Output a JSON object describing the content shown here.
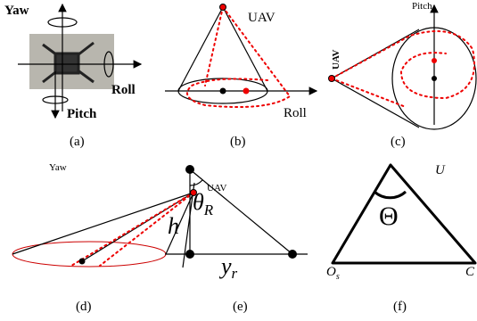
{
  "panels": [
    {
      "caption": "(a)",
      "labels": [
        "Yaw",
        "Roll",
        "Pitch"
      ]
    },
    {
      "caption": "(b)",
      "labels": [
        "UAV",
        "Roll"
      ]
    },
    {
      "caption": "(c)",
      "labels": [
        "Pitch",
        "UAV"
      ]
    },
    {
      "caption": "(d)",
      "labels": [
        "Yaw",
        "UAV"
      ]
    },
    {
      "caption": "(e)",
      "labels": {
        "angle": {
          "base": "θ",
          "sub": "R"
        },
        "height": "h",
        "distance": {
          "base": "y",
          "sub": "r"
        }
      }
    },
    {
      "caption": "(f)",
      "labels": {
        "top": "U",
        "angle": "Θ",
        "left": {
          "base": "O",
          "sub": "s"
        },
        "right": "C"
      }
    }
  ]
}
